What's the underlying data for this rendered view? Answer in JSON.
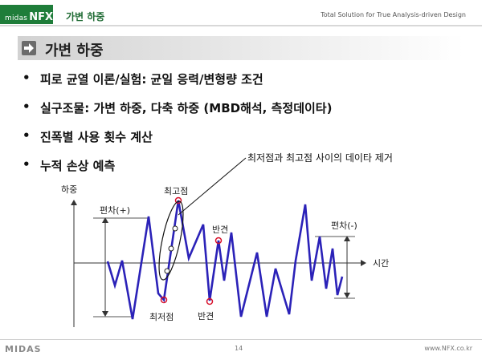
{
  "header": {
    "logo_small": "midas",
    "logo_big": "NFX",
    "section_title": "가변 하중",
    "tagline": "Total Solution for True Analysis-driven Design"
  },
  "slide": {
    "title": "가변 하중",
    "bullets": [
      {
        "marker": "•",
        "text": "피로 균열 이론/실험: 균일 응력/변형량 조건"
      },
      {
        "marker": "•",
        "text": "실구조물: 가변 하중, 다축 하중 (MBD해석, 측정데이타)"
      },
      {
        "marker": "•",
        "text": "진폭별 사용 횟수 계산"
      },
      {
        "marker": "•",
        "text": "누적 손상 예측"
      }
    ]
  },
  "diagram": {
    "y_axis_label": "하중",
    "x_axis_label": "시간",
    "callout": "최저점과 최고점 사이의 데이타 제거",
    "label_max": "최고점",
    "label_min": "최저점",
    "label_reversal_top": "반견",
    "label_reversal_bottom": "반견",
    "label_range_plus": "편차(+)",
    "label_range_minus": "편차(-)",
    "colors": {
      "signal": "#2b22b8",
      "marker": "#d8102a",
      "axis": "#333333"
    }
  },
  "footer": {
    "logo": "MIDAS",
    "page": "14",
    "url": "www.NFX.co.kr"
  }
}
